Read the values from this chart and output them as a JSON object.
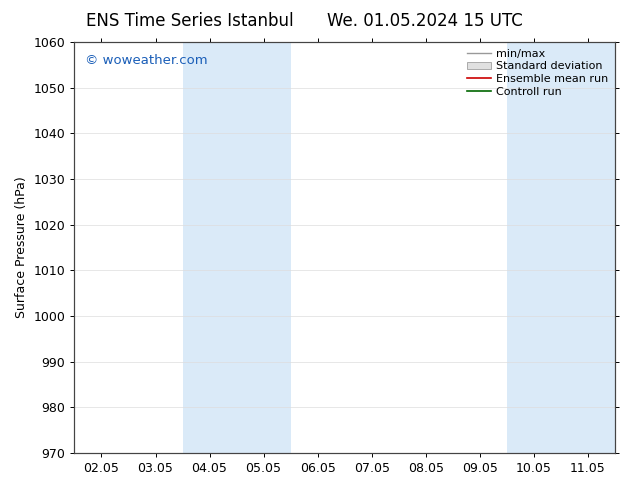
{
  "title_left": "ENS Time Series Istanbul",
  "title_right": "We. 01.05.2024 15 UTC",
  "ylabel": "Surface Pressure (hPa)",
  "ylim": [
    970,
    1060
  ],
  "yticks": [
    970,
    980,
    990,
    1000,
    1010,
    1020,
    1030,
    1040,
    1050,
    1060
  ],
  "xtick_labels": [
    "02.05",
    "03.05",
    "04.05",
    "05.05",
    "06.05",
    "07.05",
    "08.05",
    "09.05",
    "10.05",
    "11.05"
  ],
  "xtick_values": [
    0,
    1,
    2,
    3,
    4,
    5,
    6,
    7,
    8,
    9
  ],
  "xlim": [
    -0.5,
    9.5
  ],
  "shaded_bands": [
    {
      "x_start": 1.5,
      "x_end": 3.5
    },
    {
      "x_start": 7.5,
      "x_end": 9.5
    }
  ],
  "band_color": "#daeaf8",
  "watermark_text": "© woweather.com",
  "watermark_color": "#1a5eb8",
  "legend_entries": [
    {
      "label": "min/max",
      "color": "#999999",
      "style": "line",
      "lw": 1.0
    },
    {
      "label": "Standard deviation",
      "color": "#cccccc",
      "style": "band"
    },
    {
      "label": "Ensemble mean run",
      "color": "#cc0000",
      "style": "line",
      "lw": 1.2
    },
    {
      "label": "Controll run",
      "color": "#006600",
      "style": "line",
      "lw": 1.2
    }
  ],
  "bg_color": "#ffffff",
  "grid_color": "#dddddd",
  "title_fontsize": 12,
  "axis_fontsize": 9,
  "tick_fontsize": 9,
  "legend_fontsize": 8
}
